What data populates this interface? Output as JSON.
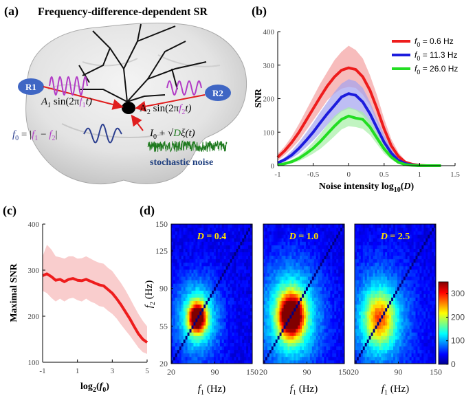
{
  "panels": {
    "a": {
      "label": "(a)",
      "title": "Frequency-difference-dependent SR",
      "r1": "R1",
      "r2": "R2",
      "stim1_prefix": "A",
      "stim1_sub": "1",
      "stim1_mid": " sin(2π",
      "stim1_f": "f",
      "stim1_fsub": "1",
      "stim1_end": "t)",
      "stim2_prefix": "A",
      "stim2_sub": "2",
      "stim2_mid": " sin(2π",
      "stim2_f": "f",
      "stim2_fsub": "2",
      "stim2_end": "t)",
      "f0_eq": "f",
      "f0_sub": "0",
      "f0_rest": " = |",
      "f0_f1": "f",
      "f0_f1sub": "1",
      "f0_minus": " − ",
      "f0_f2": "f",
      "f0_f2sub": "2",
      "f0_close": "|",
      "noise_I": "I",
      "noise_Isub": "0",
      "noise_plus": " + √",
      "noise_D": "D",
      "noise_xi": "ξ(t)",
      "noise_label": "stochastic noise"
    },
    "b": {
      "label": "(b)"
    },
    "c": {
      "label": "(c)"
    },
    "d": {
      "label": "(d)"
    }
  },
  "colors": {
    "stim1": "#b23cc6",
    "stim2": "#b23cc6",
    "f0wave": "#2c3f8f",
    "noise": "#1f7a1f",
    "noise_label": "#1f3f7f",
    "arrow": "#e01e1e",
    "bubble": "#3f66c4",
    "panel_d_label": "#ffe000"
  },
  "chart_data": [
    {
      "id": "b",
      "type": "line",
      "xlabel": "Noise intensity log10(D)",
      "xlabel_parts": [
        "Noise intensity log",
        "10",
        "(",
        "D",
        ")"
      ],
      "ylabel": "SNR",
      "xlim": [
        -1,
        1.5
      ],
      "ylim": [
        0,
        400
      ],
      "xticks": [
        -1,
        -0.5,
        0,
        0.5,
        1,
        1.5
      ],
      "xtick_labels": [
        "-1",
        "-0.5",
        "0",
        "0.5",
        "1",
        "1.5"
      ],
      "yticks": [
        0,
        100,
        200,
        300,
        400
      ],
      "legend_position": "top-right",
      "x": [
        -1.0,
        -0.9,
        -0.8,
        -0.7,
        -0.6,
        -0.5,
        -0.4,
        -0.3,
        -0.2,
        -0.1,
        0.0,
        0.1,
        0.2,
        0.3,
        0.4,
        0.5,
        0.6,
        0.7,
        0.8,
        0.9,
        1.0,
        1.1,
        1.2,
        1.3
      ],
      "series": [
        {
          "name": "f0 = 0.6 Hz",
          "name_f": "f",
          "name_sub": "0",
          "name_rest": " = 0.6 Hz",
          "color": "#ee1c1c",
          "band": "#f4a0a0",
          "values": [
            25,
            45,
            70,
            100,
            135,
            170,
            205,
            238,
            265,
            285,
            292,
            287,
            265,
            225,
            170,
            110,
            60,
            28,
            10,
            4,
            1,
            0,
            0,
            0
          ],
          "upper": [
            35,
            58,
            88,
            125,
            165,
            205,
            245,
            280,
            315,
            340,
            358,
            345,
            320,
            270,
            210,
            140,
            80,
            40,
            15,
            6,
            2,
            0,
            0,
            0
          ],
          "lower": [
            15,
            32,
            52,
            75,
            105,
            135,
            165,
            195,
            215,
            230,
            235,
            232,
            212,
            180,
            130,
            80,
            40,
            16,
            5,
            2,
            0,
            0,
            0,
            0
          ]
        },
        {
          "name": "f0 = 11.3 Hz",
          "name_f": "f",
          "name_sub": "0",
          "name_rest": " = 11.3 Hz",
          "color": "#1c1cdd",
          "band": "#a3a3f0",
          "values": [
            8,
            18,
            32,
            52,
            75,
            100,
            128,
            155,
            180,
            205,
            215,
            210,
            190,
            155,
            112,
            70,
            38,
            16,
            6,
            2,
            0,
            0,
            0,
            0
          ],
          "upper": [
            12,
            25,
            45,
            70,
            98,
            128,
            160,
            190,
            220,
            245,
            258,
            252,
            232,
            190,
            140,
            92,
            50,
            22,
            8,
            3,
            1,
            0,
            0,
            0
          ],
          "lower": [
            4,
            12,
            22,
            36,
            55,
            75,
            98,
            122,
            142,
            162,
            170,
            166,
            150,
            122,
            88,
            52,
            26,
            10,
            3,
            1,
            0,
            0,
            0,
            0
          ]
        },
        {
          "name": "f0 = 26.0 Hz",
          "name_f": "f",
          "name_sub": "0",
          "name_rest": " = 26.0 Hz",
          "color": "#22dd22",
          "band": "#a6f0a6",
          "values": [
            2,
            6,
            12,
            22,
            36,
            52,
            72,
            95,
            118,
            138,
            148,
            142,
            138,
            115,
            82,
            50,
            26,
            10,
            3,
            1,
            0,
            0,
            0,
            0
          ],
          "upper": [
            4,
            9,
            18,
            30,
            48,
            70,
            95,
            122,
            148,
            165,
            175,
            168,
            160,
            135,
            100,
            65,
            36,
            15,
            5,
            2,
            0,
            0,
            0,
            0
          ],
          "lower": [
            1,
            3,
            7,
            14,
            24,
            36,
            50,
            68,
            88,
            108,
            118,
            115,
            110,
            92,
            64,
            36,
            18,
            6,
            2,
            0,
            0,
            0,
            0,
            0
          ]
        }
      ]
    },
    {
      "id": "c",
      "type": "line",
      "xlabel": "log2(f0)",
      "xlabel_parts": [
        "log",
        "2",
        "(",
        "f",
        "0",
        ")"
      ],
      "ylabel": "Maximal SNR",
      "xlim": [
        -1,
        5
      ],
      "ylim": [
        100,
        400
      ],
      "xticks": [
        -1,
        1,
        3,
        5
      ],
      "yticks": [
        100,
        200,
        300,
        400
      ],
      "x": [
        -1,
        -0.75,
        -0.5,
        -0.25,
        0,
        0.25,
        0.5,
        0.75,
        1,
        1.25,
        1.5,
        1.75,
        2,
        2.25,
        2.5,
        2.75,
        3,
        3.25,
        3.5,
        3.75,
        4,
        4.25,
        4.5,
        4.75,
        5
      ],
      "series": [
        {
          "name": "",
          "color": "#ee1c1c",
          "band": "#f7b8b8",
          "values": [
            288,
            292,
            286,
            278,
            280,
            275,
            280,
            282,
            278,
            277,
            280,
            276,
            272,
            268,
            266,
            258,
            250,
            238,
            225,
            210,
            195,
            178,
            162,
            150,
            143
          ],
          "upper": [
            330,
            355,
            345,
            330,
            328,
            325,
            330,
            330,
            325,
            326,
            330,
            325,
            320,
            316,
            314,
            305,
            298,
            285,
            272,
            257,
            240,
            222,
            205,
            190,
            178
          ],
          "lower": [
            255,
            250,
            240,
            232,
            238,
            232,
            238,
            240,
            235,
            232,
            238,
            232,
            228,
            222,
            220,
            212,
            205,
            195,
            182,
            170,
            158,
            145,
            132,
            122,
            118
          ]
        }
      ]
    },
    {
      "id": "d",
      "type": "heatmap",
      "xlabel": "f1 (Hz)",
      "ylabel": "f2 (Hz)",
      "xticks": [
        20,
        90,
        150
      ],
      "yticks": [
        20,
        55,
        90,
        125,
        150
      ],
      "xlim": [
        20,
        150
      ],
      "ylim": [
        20,
        150
      ],
      "colorbar": {
        "min": 0,
        "max": 350,
        "ticks": [
          0,
          100,
          200,
          300
        ]
      },
      "maps": [
        {
          "label_var": "D",
          "label_val": " = 0.4",
          "peak_f1": 62,
          "peak_f2": 63,
          "peak": 320,
          "spread": 9,
          "halo": 130,
          "halo_spread": 24
        },
        {
          "label_var": "D",
          "label_val": " = 1.0",
          "peak_f1": 65,
          "peak_f2": 65,
          "peak": 330,
          "spread": 13,
          "halo": 140,
          "halo_spread": 32
        },
        {
          "label_var": "D",
          "label_val": " = 2.5",
          "peak_f1": 60,
          "peak_f2": 62,
          "peak": 150,
          "spread": 16,
          "halo": 95,
          "halo_spread": 34
        }
      ]
    }
  ]
}
